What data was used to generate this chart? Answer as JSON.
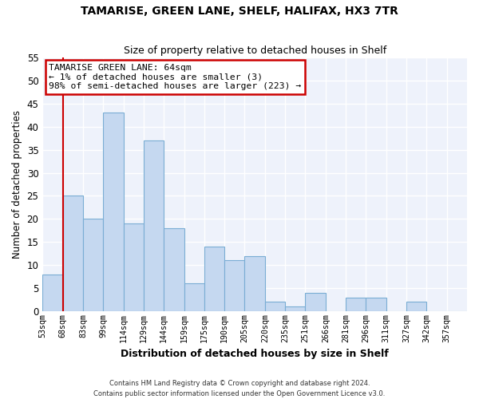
{
  "title": "TAMARISE, GREEN LANE, SHELF, HALIFAX, HX3 7TR",
  "subtitle": "Size of property relative to detached houses in Shelf",
  "xlabel": "Distribution of detached houses by size in Shelf",
  "ylabel": "Number of detached properties",
  "bar_color": "#c5d8f0",
  "bar_edge_color": "#7aadd4",
  "annotation_line_color": "#cc0000",
  "background_color": "#ffffff",
  "plot_bg_color": "#eef2fb",
  "bin_labels": [
    "53sqm",
    "68sqm",
    "83sqm",
    "99sqm",
    "114sqm",
    "129sqm",
    "144sqm",
    "159sqm",
    "175sqm",
    "190sqm",
    "205sqm",
    "220sqm",
    "235sqm",
    "251sqm",
    "266sqm",
    "281sqm",
    "296sqm",
    "311sqm",
    "327sqm",
    "342sqm",
    "357sqm"
  ],
  "bar_heights": [
    8,
    25,
    20,
    43,
    19,
    37,
    18,
    6,
    14,
    11,
    12,
    2,
    1,
    4,
    0,
    3,
    3,
    0,
    2,
    0,
    0
  ],
  "annotation_text_line1": "TAMARISE GREEN LANE: 64sqm",
  "annotation_text_line2": "← 1% of detached houses are smaller (3)",
  "annotation_text_line3": "98% of semi-detached houses are larger (223) →",
  "vline_x": 1,
  "ylim": [
    0,
    55
  ],
  "yticks": [
    0,
    5,
    10,
    15,
    20,
    25,
    30,
    35,
    40,
    45,
    50,
    55
  ],
  "grid_color": "#ffffff",
  "footer_line1": "Contains HM Land Registry data © Crown copyright and database right 2024.",
  "footer_line2": "Contains public sector information licensed under the Open Government Licence v3.0."
}
